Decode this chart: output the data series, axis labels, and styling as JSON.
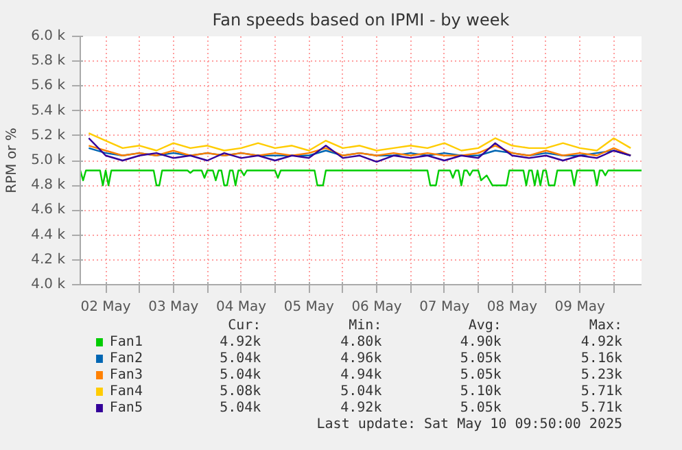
{
  "chart_data": {
    "type": "line",
    "title": "Fan speeds based on IPMI - by week",
    "ylabel": "RPM or %",
    "xlim": [
      "2025-05-02T03:00",
      "2025-05-10T09:50"
    ],
    "xticks": [
      {
        "value": "2025-05-02T12:00",
        "label": "02 May"
      },
      {
        "value": "2025-05-03T00:00",
        "label": null
      },
      {
        "value": "2025-05-03T12:00",
        "label": "03 May"
      },
      {
        "value": "2025-05-04T00:00",
        "label": null
      },
      {
        "value": "2025-05-04T12:00",
        "label": "04 May"
      },
      {
        "value": "2025-05-05T00:00",
        "label": null
      },
      {
        "value": "2025-05-05T12:00",
        "label": "05 May"
      },
      {
        "value": "2025-05-06T00:00",
        "label": null
      },
      {
        "value": "2025-05-06T12:00",
        "label": "06 May"
      },
      {
        "value": "2025-05-07T00:00",
        "label": null
      },
      {
        "value": "2025-05-07T12:00",
        "label": "07 May"
      },
      {
        "value": "2025-05-08T00:00",
        "label": null
      },
      {
        "value": "2025-05-08T12:00",
        "label": "08 May"
      },
      {
        "value": "2025-05-09T00:00",
        "label": null
      },
      {
        "value": "2025-05-09T12:00",
        "label": "09 May"
      },
      {
        "value": "2025-05-10T00:00",
        "label": null
      }
    ],
    "ylim": [
      4000,
      6000
    ],
    "yticks": [
      {
        "value": 4000,
        "label": "4.0 k"
      },
      {
        "value": 4200,
        "label": "4.2 k"
      },
      {
        "value": 4400,
        "label": "4.4 k"
      },
      {
        "value": 4600,
        "label": "4.6 k"
      },
      {
        "value": 4800,
        "label": "4.8 k"
      },
      {
        "value": 5000,
        "label": "5.0 k"
      },
      {
        "value": 5200,
        "label": "5.2 k"
      },
      {
        "value": 5400,
        "label": "5.4 k"
      },
      {
        "value": 5600,
        "label": "5.6 k"
      },
      {
        "value": 5800,
        "label": "5.8 k"
      },
      {
        "value": 6000,
        "label": "6.0 k"
      }
    ],
    "grid": true,
    "legend": "bottom",
    "marker": "none",
    "line_style": "solid",
    "x": [
      "2025-05-02T06:00",
      "2025-05-02T12:00",
      "2025-05-02T18:00",
      "2025-05-03T00:00",
      "2025-05-03T06:00",
      "2025-05-03T12:00",
      "2025-05-03T18:00",
      "2025-05-04T00:00",
      "2025-05-04T06:00",
      "2025-05-04T12:00",
      "2025-05-04T18:00",
      "2025-05-05T00:00",
      "2025-05-05T06:00",
      "2025-05-05T12:00",
      "2025-05-05T18:00",
      "2025-05-06T00:00",
      "2025-05-06T06:00",
      "2025-05-06T12:00",
      "2025-05-06T18:00",
      "2025-05-07T00:00",
      "2025-05-07T06:00",
      "2025-05-07T12:00",
      "2025-05-07T18:00",
      "2025-05-08T00:00",
      "2025-05-08T06:00",
      "2025-05-08T12:00",
      "2025-05-08T18:00",
      "2025-05-09T00:00",
      "2025-05-09T06:00",
      "2025-05-09T12:00",
      "2025-05-09T18:00",
      "2025-05-10T00:00",
      "2025-05-10T06:00"
    ],
    "series": [
      {
        "name": "Fan1",
        "color": "#00cc00",
        "x": [
          "2025-05-02T03:00",
          "2025-05-02T04:00",
          "2025-05-02T05:00",
          "2025-05-02T10:00",
          "2025-05-02T11:00",
          "2025-05-02T12:00",
          "2025-05-02T13:00",
          "2025-05-02T14:00",
          "2025-05-03T05:00",
          "2025-05-03T06:00",
          "2025-05-03T07:00",
          "2025-05-03T08:00",
          "2025-05-03T17:00",
          "2025-05-03T18:00",
          "2025-05-03T19:00",
          "2025-05-03T22:00",
          "2025-05-03T23:00",
          "2025-05-04T00:00",
          "2025-05-04T02:00",
          "2025-05-04T03:00",
          "2025-05-04T04:00",
          "2025-05-04T05:00",
          "2025-05-04T06:00",
          "2025-05-04T07:00",
          "2025-05-04T08:00",
          "2025-05-04T09:00",
          "2025-05-04T10:00",
          "2025-05-04T11:00",
          "2025-05-04T12:00",
          "2025-05-04T13:00",
          "2025-05-04T14:00",
          "2025-05-05T00:00",
          "2025-05-05T01:00",
          "2025-05-05T02:00",
          "2025-05-05T14:00",
          "2025-05-05T15:00",
          "2025-05-05T17:00",
          "2025-05-05T18:00",
          "2025-05-07T06:00",
          "2025-05-07T07:00",
          "2025-05-07T09:00",
          "2025-05-07T10:00",
          "2025-05-07T14:00",
          "2025-05-07T15:00",
          "2025-05-07T16:00",
          "2025-05-07T17:00",
          "2025-05-07T18:00",
          "2025-05-07T19:00",
          "2025-05-07T20:00",
          "2025-05-07T21:00",
          "2025-05-07T22:00",
          "2025-05-08T00:00",
          "2025-05-08T01:00",
          "2025-05-08T03:00",
          "2025-05-08T05:00",
          "2025-05-08T10:00",
          "2025-05-08T11:00",
          "2025-05-08T16:00",
          "2025-05-08T17:00",
          "2025-05-08T18:00",
          "2025-05-08T19:00",
          "2025-05-08T20:00",
          "2025-05-08T21:00",
          "2025-05-08T22:00",
          "2025-05-08T23:00",
          "2025-05-09T00:00",
          "2025-05-09T01:00",
          "2025-05-09T03:00",
          "2025-05-09T04:00",
          "2025-05-09T09:00",
          "2025-05-09T10:00",
          "2025-05-09T11:00",
          "2025-05-09T17:00",
          "2025-05-09T18:00",
          "2025-05-09T19:00",
          "2025-05-09T20:00",
          "2025-05-09T21:00",
          "2025-05-09T22:00",
          "2025-05-10T09:50"
        ],
        "values": [
          4920,
          4840,
          4920,
          4920,
          4800,
          4920,
          4800,
          4920,
          4920,
          4800,
          4800,
          4920,
          4920,
          4900,
          4920,
          4920,
          4860,
          4920,
          4920,
          4840,
          4920,
          4920,
          4800,
          4800,
          4920,
          4920,
          4800,
          4920,
          4920,
          4880,
          4920,
          4920,
          4860,
          4920,
          4920,
          4800,
          4800,
          4920,
          4920,
          4800,
          4800,
          4920,
          4920,
          4860,
          4920,
          4920,
          4800,
          4920,
          4920,
          4880,
          4920,
          4920,
          4840,
          4880,
          4800,
          4800,
          4920,
          4920,
          4800,
          4920,
          4920,
          4800,
          4920,
          4800,
          4920,
          4920,
          4800,
          4800,
          4920,
          4920,
          4800,
          4920,
          4920,
          4800,
          4920,
          4920,
          4880,
          4920,
          4920
        ]
      },
      {
        "name": "Fan2",
        "color": "#0066b3",
        "values": [
          5100,
          5060,
          5040,
          5060,
          5040,
          5060,
          5040,
          5060,
          5040,
          5060,
          5040,
          5040,
          5040,
          5040,
          5080,
          5040,
          5060,
          5040,
          5040,
          5060,
          5040,
          5060,
          5040,
          5040,
          5080,
          5060,
          5040,
          5060,
          5040,
          5040,
          5060,
          5080,
          5040
        ]
      },
      {
        "name": "Fan3",
        "color": "#ff8000",
        "values": [
          5120,
          5080,
          5040,
          5060,
          5040,
          5080,
          5040,
          5060,
          5040,
          5060,
          5040,
          5060,
          5040,
          5060,
          5100,
          5040,
          5060,
          5040,
          5060,
          5040,
          5060,
          5040,
          5040,
          5060,
          5120,
          5060,
          5040,
          5080,
          5040,
          5060,
          5040,
          5100,
          5040
        ]
      },
      {
        "name": "Fan4",
        "color": "#ffcc00",
        "values": [
          5220,
          5160,
          5100,
          5120,
          5080,
          5140,
          5100,
          5120,
          5080,
          5100,
          5140,
          5100,
          5120,
          5080,
          5160,
          5100,
          5120,
          5080,
          5100,
          5120,
          5100,
          5140,
          5080,
          5100,
          5180,
          5120,
          5100,
          5100,
          5140,
          5100,
          5080,
          5180,
          5100
        ]
      },
      {
        "name": "Fan5",
        "color": "#330099",
        "values": [
          5180,
          5040,
          5000,
          5040,
          5060,
          5020,
          5040,
          5000,
          5060,
          5020,
          5040,
          5000,
          5040,
          5020,
          5120,
          5020,
          5040,
          4990,
          5040,
          5020,
          5040,
          5000,
          5040,
          5020,
          5140,
          5040,
          5020,
          5040,
          5000,
          5040,
          5020,
          5080,
          5040
        ]
      }
    ],
    "annotations": [
      "Cur:",
      "Min:",
      "Avg:",
      "Max:",
      "4.92k",
      "4.80k",
      "4.90k",
      "4.92k",
      "5.04k",
      "4.96k",
      "5.05k",
      "5.16k",
      "5.04k",
      "4.94k",
      "5.05k",
      "5.23k",
      "5.08k",
      "5.04k",
      "5.10k",
      "5.71k",
      "5.04k",
      "4.92k",
      "5.05k",
      "5.71k",
      "Last update: Sat May 10 09:50:00 2025"
    ]
  }
}
